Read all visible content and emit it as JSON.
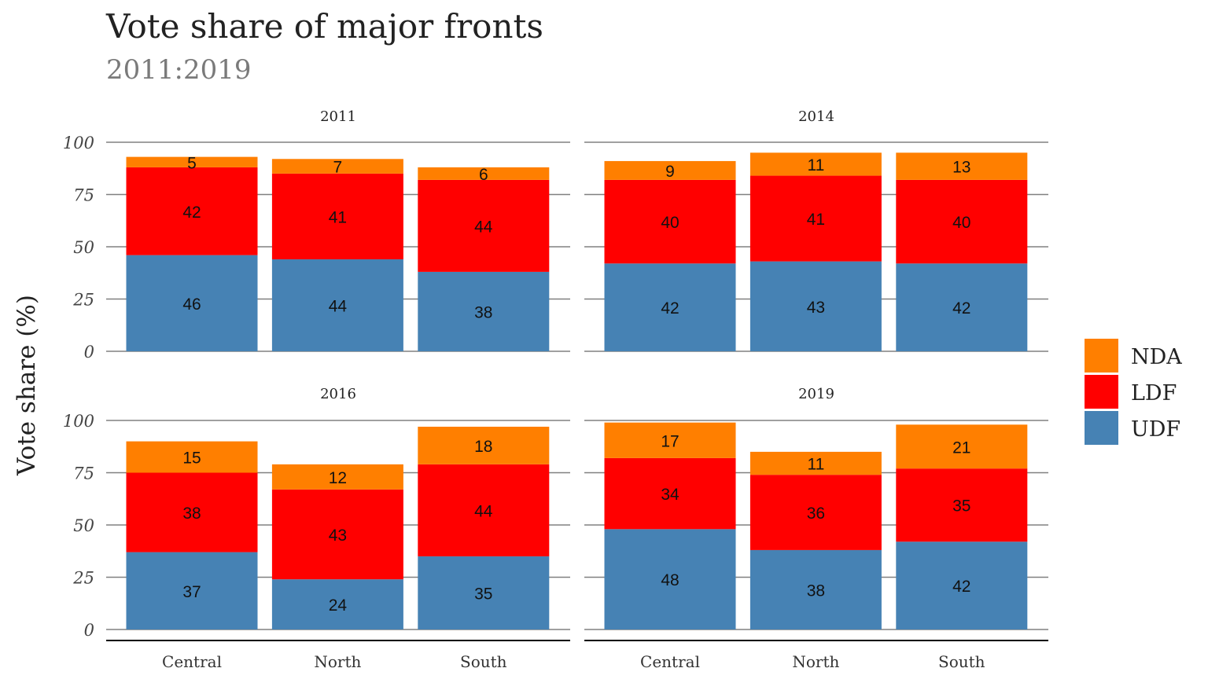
{
  "chart_data": {
    "type": "bar",
    "stacked": true,
    "title": "Vote share of major fronts",
    "subtitle": "2011:2019",
    "ylabel": "Vote share (%)",
    "xlabel": "",
    "ylim": [
      0,
      100
    ],
    "yticks": [
      0,
      25,
      50,
      75,
      100
    ],
    "grid": true,
    "legend": "right",
    "categories": [
      "Central",
      "North",
      "South"
    ],
    "stack_order": [
      "UDF",
      "LDF",
      "NDA"
    ],
    "legend_order": [
      "NDA",
      "LDF",
      "UDF"
    ],
    "colors": {
      "UDF": "#4682b4",
      "LDF": "#ff0000",
      "NDA": "#ff7f00"
    },
    "facets": [
      {
        "label": "2011",
        "series": [
          {
            "name": "UDF",
            "values": [
              46,
              44,
              38
            ],
            "labels": [
              "46",
              "44",
              "38"
            ]
          },
          {
            "name": "LDF",
            "values": [
              42,
              41,
              44
            ],
            "labels": [
              "42",
              "41",
              "44"
            ]
          },
          {
            "name": "NDA",
            "values": [
              5,
              7,
              6
            ],
            "labels": [
              "5",
              "7",
              "6"
            ]
          }
        ]
      },
      {
        "label": "2014",
        "series": [
          {
            "name": "UDF",
            "values": [
              42,
              43,
              42
            ],
            "labels": [
              "42",
              "43",
              "42"
            ]
          },
          {
            "name": "LDF",
            "values": [
              40,
              41,
              40
            ],
            "labels": [
              "40",
              "41",
              "40"
            ]
          },
          {
            "name": "NDA",
            "values": [
              9,
              11,
              13
            ],
            "labels": [
              "9",
              "11",
              "13"
            ]
          }
        ]
      },
      {
        "label": "2016",
        "series": [
          {
            "name": "UDF",
            "values": [
              37,
              24,
              35
            ],
            "labels": [
              "37",
              "24",
              "35"
            ]
          },
          {
            "name": "LDF",
            "values": [
              38,
              43,
              44
            ],
            "labels": [
              "38",
              "43",
              "44"
            ]
          },
          {
            "name": "NDA",
            "values": [
              15,
              12,
              18
            ],
            "labels": [
              "15",
              "12",
              "18"
            ]
          }
        ]
      },
      {
        "label": "2019",
        "series": [
          {
            "name": "UDF",
            "values": [
              48,
              38,
              42
            ],
            "labels": [
              "48",
              "38",
              "42"
            ]
          },
          {
            "name": "LDF",
            "values": [
              34,
              36,
              35
            ],
            "labels": [
              "34",
              "36",
              "35"
            ]
          },
          {
            "name": "NDA",
            "values": [
              17,
              11,
              21
            ],
            "labels": [
              "17",
              "11",
              "21"
            ]
          }
        ]
      }
    ]
  }
}
